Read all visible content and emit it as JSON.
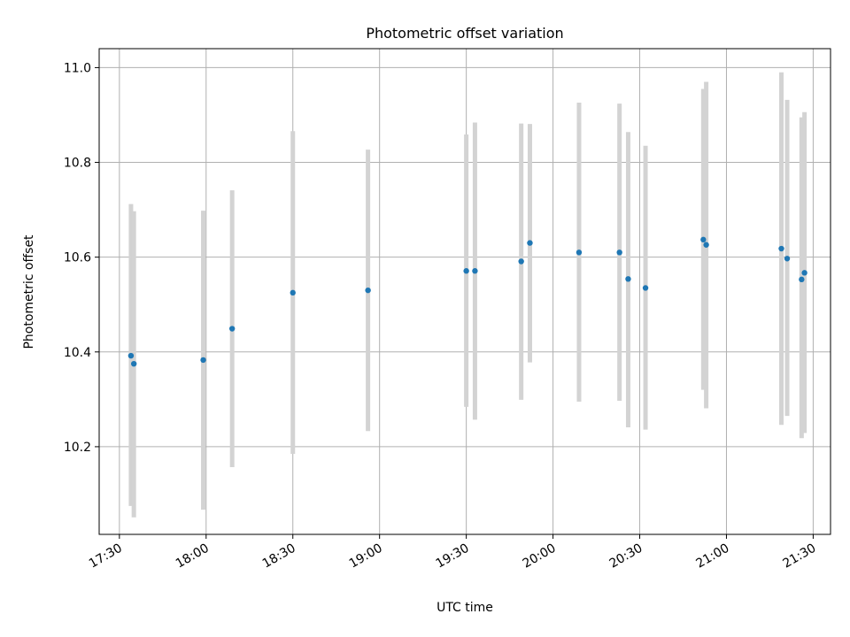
{
  "chart_data": {
    "type": "scatter",
    "title": "Photometric offset variation",
    "xlabel": "UTC time",
    "ylabel": "Photometric offset",
    "xlim": [
      "17:23",
      "21:36"
    ],
    "ylim": [
      10.015,
      11.04
    ],
    "x_ticks": [
      "17:30",
      "18:00",
      "18:30",
      "19:00",
      "19:30",
      "20:00",
      "20:30",
      "21:00",
      "21:30"
    ],
    "y_ticks": [
      "10.2",
      "10.4",
      "10.6",
      "10.8",
      "11.0"
    ],
    "grid": true,
    "points": [
      {
        "x": "17:34",
        "y": 10.392,
        "err_low": 10.075,
        "err_high": 10.712
      },
      {
        "x": "17:35",
        "y": 10.375,
        "err_low": 10.051,
        "err_high": 10.697
      },
      {
        "x": "17:59",
        "y": 10.383,
        "err_low": 10.067,
        "err_high": 10.698
      },
      {
        "x": "18:09",
        "y": 10.449,
        "err_low": 10.157,
        "err_high": 10.741
      },
      {
        "x": "18:30",
        "y": 10.525,
        "err_low": 10.185,
        "err_high": 10.866
      },
      {
        "x": "18:56",
        "y": 10.53,
        "err_low": 10.233,
        "err_high": 10.827
      },
      {
        "x": "19:30",
        "y": 10.571,
        "err_low": 10.284,
        "err_high": 10.859
      },
      {
        "x": "19:33",
        "y": 10.571,
        "err_low": 10.257,
        "err_high": 10.884
      },
      {
        "x": "19:49",
        "y": 10.591,
        "err_low": 10.299,
        "err_high": 10.882
      },
      {
        "x": "19:52",
        "y": 10.63,
        "err_low": 10.378,
        "err_high": 10.881
      },
      {
        "x": "20:09",
        "y": 10.61,
        "err_low": 10.295,
        "err_high": 10.926
      },
      {
        "x": "20:23",
        "y": 10.61,
        "err_low": 10.297,
        "err_high": 10.924
      },
      {
        "x": "20:26",
        "y": 10.554,
        "err_low": 10.241,
        "err_high": 10.864
      },
      {
        "x": "20:32",
        "y": 10.535,
        "err_low": 10.236,
        "err_high": 10.835
      },
      {
        "x": "20:52",
        "y": 10.637,
        "err_low": 10.32,
        "err_high": 10.955
      },
      {
        "x": "20:53",
        "y": 10.626,
        "err_low": 10.281,
        "err_high": 10.97
      },
      {
        "x": "21:19",
        "y": 10.618,
        "err_low": 10.246,
        "err_high": 10.99
      },
      {
        "x": "21:21",
        "y": 10.597,
        "err_low": 10.265,
        "err_high": 10.932
      },
      {
        "x": "21:26",
        "y": 10.553,
        "err_low": 10.218,
        "err_high": 10.895
      },
      {
        "x": "21:27",
        "y": 10.567,
        "err_low": 10.229,
        "err_high": 10.906
      }
    ],
    "colors": {
      "point": "#1f77b4",
      "errorbar": "#d3d3d3",
      "grid": "#b0b0b0"
    }
  }
}
